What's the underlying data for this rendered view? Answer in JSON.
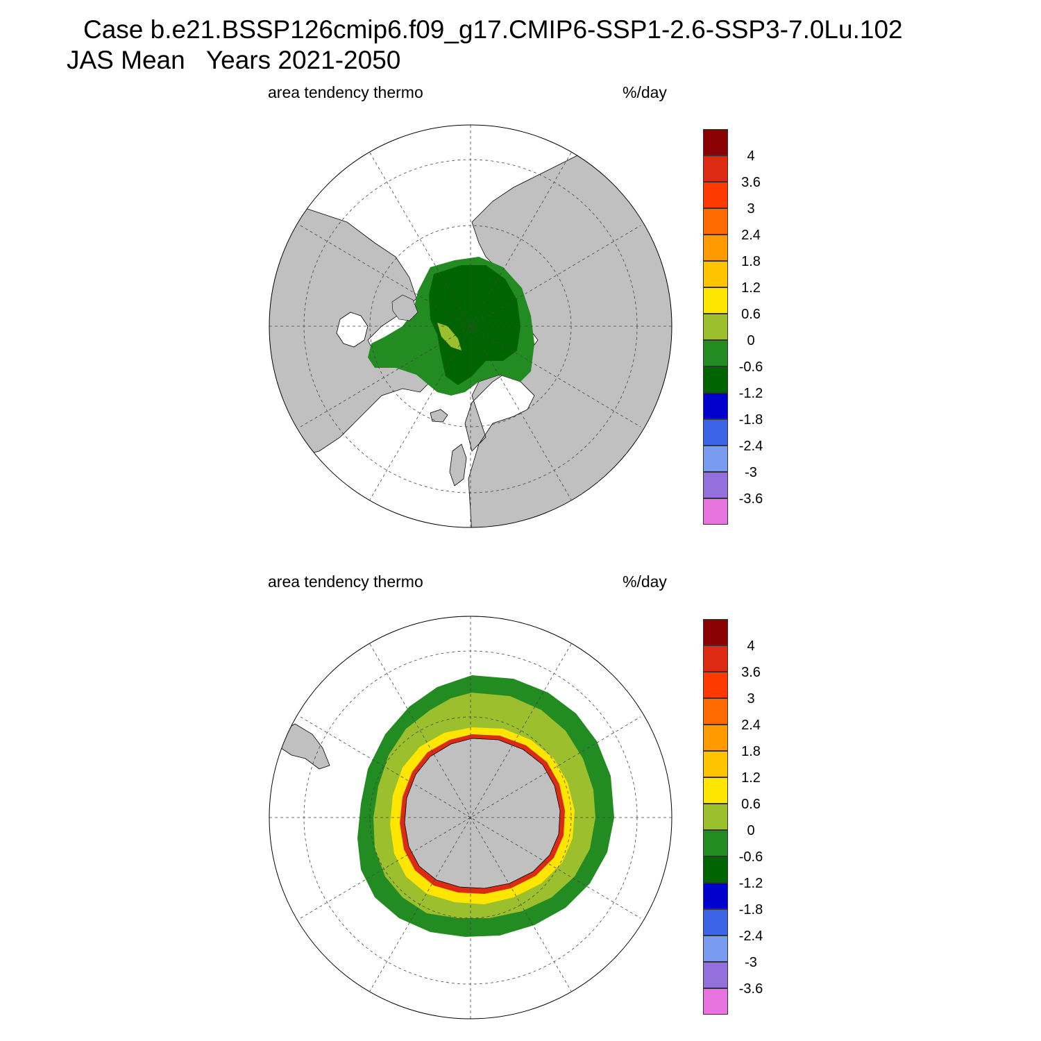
{
  "header": {
    "case_line": "Case b.e21.BSSP126cmip6.f09_g17.CMIP6-SSP1-2.6-SSP3-7.0Lu.102",
    "period_line": "JAS Mean   Years 2021-2050"
  },
  "panels": [
    {
      "id": "north",
      "variable_label": "area tendency thermo",
      "units_label": "%/day"
    },
    {
      "id": "south",
      "variable_label": "area tendency thermo",
      "units_label": "%/day"
    }
  ],
  "colorbar": {
    "tick_labels": [
      "4",
      "3.6",
      "3",
      "2.4",
      "1.8",
      "1.2",
      "0.6",
      "0",
      "-0.6",
      "-1.2",
      "-1.8",
      "-2.4",
      "-3",
      "-3.6"
    ],
    "colors": [
      "#8b0000",
      "#dd2a12",
      "#ff3a00",
      "#ff6a00",
      "#ff9a00",
      "#ffc400",
      "#ffe600",
      "#9cbf2e",
      "#228b22",
      "#006400",
      "#0000cd",
      "#3c64e6",
      "#7a9cf0",
      "#9370db",
      "#e874e0"
    ]
  },
  "map_colors": {
    "land": "#c0c0c0",
    "ocean": "#ffffff"
  }
}
